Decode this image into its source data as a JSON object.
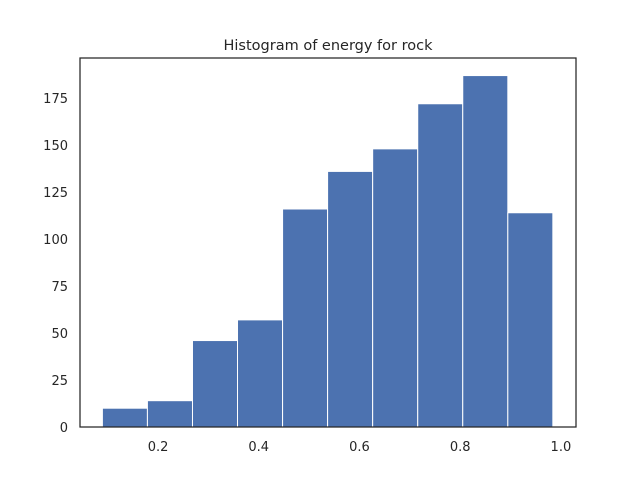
{
  "chart_data": {
    "type": "histogram",
    "title": "Histogram of energy for rock",
    "xlabel": "",
    "ylabel": "",
    "xlim": [
      0.045,
      1.03
    ],
    "ylim": [
      0,
      196.35
    ],
    "xticks": [
      0.2,
      0.4,
      0.6,
      0.8,
      1.0
    ],
    "xtick_labels": [
      "0.2",
      "0.4",
      "0.6",
      "0.8",
      "1.0"
    ],
    "yticks": [
      0,
      25,
      50,
      75,
      100,
      125,
      150,
      175
    ],
    "ytick_labels": [
      "0",
      "25",
      "50",
      "75",
      "100",
      "125",
      "150",
      "175"
    ],
    "bins": [
      {
        "x0": 0.0895,
        "x1": 0.1789,
        "count": 10
      },
      {
        "x0": 0.1789,
        "x1": 0.2684,
        "count": 14
      },
      {
        "x0": 0.2684,
        "x1": 0.3578,
        "count": 46
      },
      {
        "x0": 0.3578,
        "x1": 0.4473,
        "count": 57
      },
      {
        "x0": 0.4473,
        "x1": 0.5367,
        "count": 116
      },
      {
        "x0": 0.5367,
        "x1": 0.6262,
        "count": 136
      },
      {
        "x0": 0.6262,
        "x1": 0.7157,
        "count": 148
      },
      {
        "x0": 0.7157,
        "x1": 0.8051,
        "count": 172
      },
      {
        "x0": 0.8051,
        "x1": 0.8946,
        "count": 187
      },
      {
        "x0": 0.8946,
        "x1": 0.984,
        "count": 114
      }
    ],
    "grid": false,
    "legend": "none",
    "colors": {
      "bar_fill": "#4c72b0",
      "bar_edge": "#ffffff",
      "axes_edge": "#262626",
      "text": "#262626"
    }
  }
}
